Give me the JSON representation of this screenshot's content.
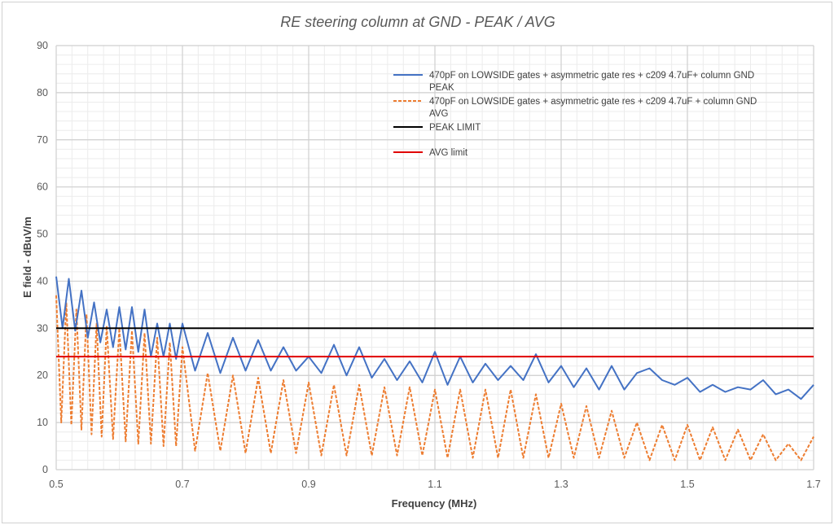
{
  "chart_data": {
    "type": "line",
    "title": "RE steering column at GND - PEAK / AVG",
    "xlabel": "Frequency (MHz)",
    "ylabel": "E field - dBuV/m",
    "xlim": [
      0.5,
      1.7
    ],
    "ylim": [
      0,
      90
    ],
    "x_ticks": [
      "0.5",
      "0.7",
      "0.9",
      "1.1",
      "1.3",
      "1.5",
      "1.7"
    ],
    "y_ticks": [
      "0",
      "10",
      "20",
      "30",
      "40",
      "50",
      "60",
      "70",
      "80",
      "90"
    ],
    "grid": true,
    "legend_position": "top-right",
    "series": [
      {
        "name": "470pF on LOWSIDE gates + asymmetric gate res + c209 4.7uF+ column GND PEAK",
        "name_lines": [
          "470pF on LOWSIDE gates + asymmetric gate res + c209 4.7uF+ column GND",
          "PEAK"
        ],
        "style": "solid",
        "color": "#4472c4",
        "x": [
          0.5,
          0.51,
          0.52,
          0.53,
          0.54,
          0.55,
          0.56,
          0.57,
          0.58,
          0.59,
          0.6,
          0.61,
          0.62,
          0.63,
          0.64,
          0.65,
          0.66,
          0.67,
          0.68,
          0.69,
          0.7,
          0.72,
          0.74,
          0.76,
          0.78,
          0.8,
          0.82,
          0.84,
          0.86,
          0.88,
          0.9,
          0.92,
          0.94,
          0.96,
          0.98,
          1.0,
          1.02,
          1.04,
          1.06,
          1.08,
          1.1,
          1.12,
          1.14,
          1.16,
          1.18,
          1.2,
          1.22,
          1.24,
          1.26,
          1.28,
          1.3,
          1.32,
          1.34,
          1.36,
          1.38,
          1.4,
          1.42,
          1.44,
          1.46,
          1.48,
          1.5,
          1.52,
          1.54,
          1.56,
          1.58,
          1.6,
          1.62,
          1.64,
          1.66,
          1.68,
          1.7
        ],
        "values": [
          41,
          30,
          40.5,
          29.5,
          38,
          28,
          35.5,
          27,
          34,
          26,
          34.5,
          25.5,
          34.5,
          25,
          34,
          24,
          31,
          24,
          31,
          23.5,
          31,
          21,
          29,
          20.5,
          28,
          21,
          27.5,
          21,
          26,
          21,
          24,
          20.5,
          26.5,
          20,
          26,
          19.5,
          23.5,
          19,
          23,
          18.5,
          25,
          18,
          24,
          18.5,
          22.5,
          19,
          22,
          19,
          24.5,
          18.5,
          22,
          17.5,
          21.5,
          17,
          22,
          17,
          20.5,
          21.5,
          19,
          18,
          19.5,
          16.5,
          18,
          16.5,
          17.5,
          17,
          19,
          16,
          17,
          15,
          18
        ]
      },
      {
        "name": "470pF on LOWSIDE gates + asymmetric gate res + c209 4.7uF + column GND AVG",
        "name_lines": [
          "470pF on LOWSIDE gates + asymmetric gate res + c209 4.7uF + column GND",
          "AVG"
        ],
        "style": "dashed",
        "color": "#ed7d31",
        "x": [
          0.5,
          0.508,
          0.516,
          0.524,
          0.532,
          0.54,
          0.548,
          0.556,
          0.564,
          0.572,
          0.58,
          0.59,
          0.6,
          0.61,
          0.62,
          0.63,
          0.64,
          0.65,
          0.66,
          0.67,
          0.68,
          0.69,
          0.7,
          0.72,
          0.74,
          0.76,
          0.78,
          0.8,
          0.82,
          0.84,
          0.86,
          0.88,
          0.9,
          0.92,
          0.94,
          0.96,
          0.98,
          1.0,
          1.02,
          1.04,
          1.06,
          1.08,
          1.1,
          1.12,
          1.14,
          1.16,
          1.18,
          1.2,
          1.22,
          1.24,
          1.26,
          1.28,
          1.3,
          1.32,
          1.34,
          1.36,
          1.38,
          1.4,
          1.42,
          1.44,
          1.46,
          1.48,
          1.5,
          1.52,
          1.54,
          1.56,
          1.58,
          1.6,
          1.62,
          1.64,
          1.66,
          1.68,
          1.7
        ],
        "values": [
          37,
          10,
          35.5,
          9.5,
          34,
          8.5,
          33,
          7.5,
          31,
          7,
          30.5,
          6.5,
          30,
          6,
          29.5,
          5.5,
          29,
          5.5,
          28,
          5,
          27,
          5,
          26,
          4,
          20.5,
          4,
          20,
          3.5,
          19.5,
          3.5,
          19,
          3.5,
          18.5,
          3,
          18,
          3,
          18,
          3,
          17.5,
          3,
          17.5,
          3,
          17,
          2.5,
          17,
          2.5,
          17,
          2.5,
          17,
          2.5,
          16,
          2.5,
          14,
          2.5,
          13.5,
          2.5,
          12.5,
          2.5,
          10,
          2,
          9.5,
          2,
          9.5,
          2,
          9,
          2,
          8.5,
          2,
          7.5,
          2,
          5.5,
          2,
          7
        ]
      },
      {
        "name": "PEAK LIMIT",
        "style": "solid",
        "color": "#000000",
        "x": [
          0.5,
          1.7
        ],
        "values": [
          30,
          30
        ]
      },
      {
        "name": "AVG limit",
        "style": "solid",
        "color": "#e00000",
        "x": [
          0.5,
          1.7
        ],
        "values": [
          24,
          24
        ]
      }
    ]
  }
}
